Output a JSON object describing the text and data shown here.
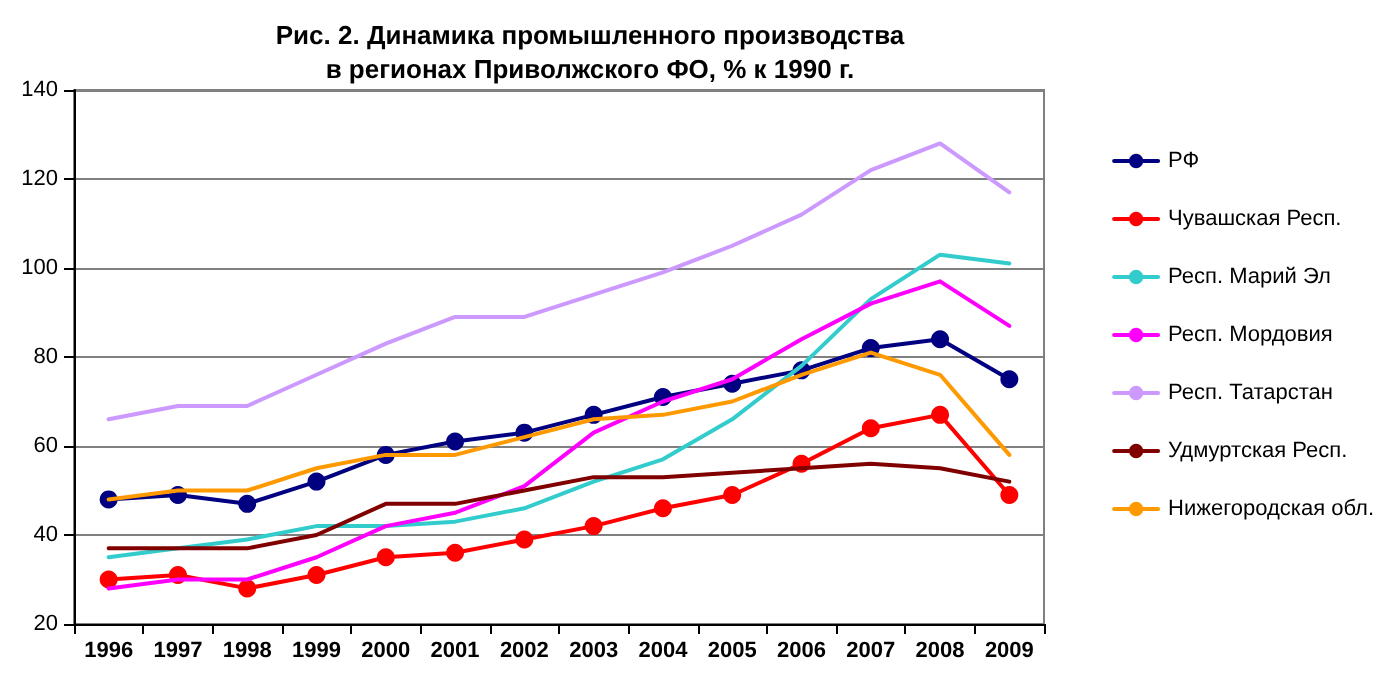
{
  "chart_data": {
    "type": "line",
    "title": "Рис. 2. Динамика промышленного производства\nв регионах Приволжского ФО, % к 1990 г.",
    "categories": [
      "1996",
      "1997",
      "1998",
      "1999",
      "2000",
      "2001",
      "2002",
      "2003",
      "2004",
      "2005",
      "2006",
      "2007",
      "2008",
      "2009"
    ],
    "series": [
      {
        "name": "РФ",
        "color": "#000080",
        "marker": "circle",
        "values": [
          48,
          49,
          47,
          52,
          58,
          61,
          63,
          67,
          71,
          74,
          77,
          82,
          84,
          75
        ]
      },
      {
        "name": "Чувашская Респ.",
        "color": "#ff0000",
        "marker": "circle",
        "values": [
          30,
          31,
          28,
          31,
          35,
          36,
          39,
          42,
          46,
          49,
          56,
          64,
          67,
          49
        ]
      },
      {
        "name": "Респ. Марий Эл",
        "color": "#33cccc",
        "marker": "none",
        "values": [
          35,
          37,
          39,
          42,
          42,
          43,
          46,
          52,
          57,
          66,
          78,
          93,
          103,
          101
        ]
      },
      {
        "name": "Респ. Мордовия",
        "color": "#ff00ff",
        "marker": "none",
        "values": [
          28,
          30,
          30,
          35,
          42,
          45,
          51,
          63,
          70,
          75,
          84,
          92,
          97,
          87
        ]
      },
      {
        "name": "Респ. Татарстан",
        "color": "#cc99ff",
        "marker": "none",
        "values": [
          66,
          69,
          69,
          76,
          83,
          89,
          89,
          94,
          99,
          105,
          112,
          122,
          128,
          117
        ]
      },
      {
        "name": "Удмуртская Респ.",
        "color": "#800000",
        "marker": "none",
        "values": [
          37,
          37,
          37,
          40,
          47,
          47,
          50,
          53,
          53,
          54,
          55,
          56,
          55,
          52
        ]
      },
      {
        "name": "Нижегородская обл.",
        "color": "#ff9900",
        "marker": "none",
        "values": [
          48,
          50,
          50,
          55,
          58,
          58,
          62,
          66,
          67,
          70,
          76,
          81,
          76,
          58
        ]
      }
    ],
    "ylim": [
      20,
      140
    ],
    "yticks": [
      20,
      40,
      60,
      80,
      100,
      120,
      140
    ],
    "grid": "y",
    "legend": "right",
    "line_style": "solid"
  }
}
